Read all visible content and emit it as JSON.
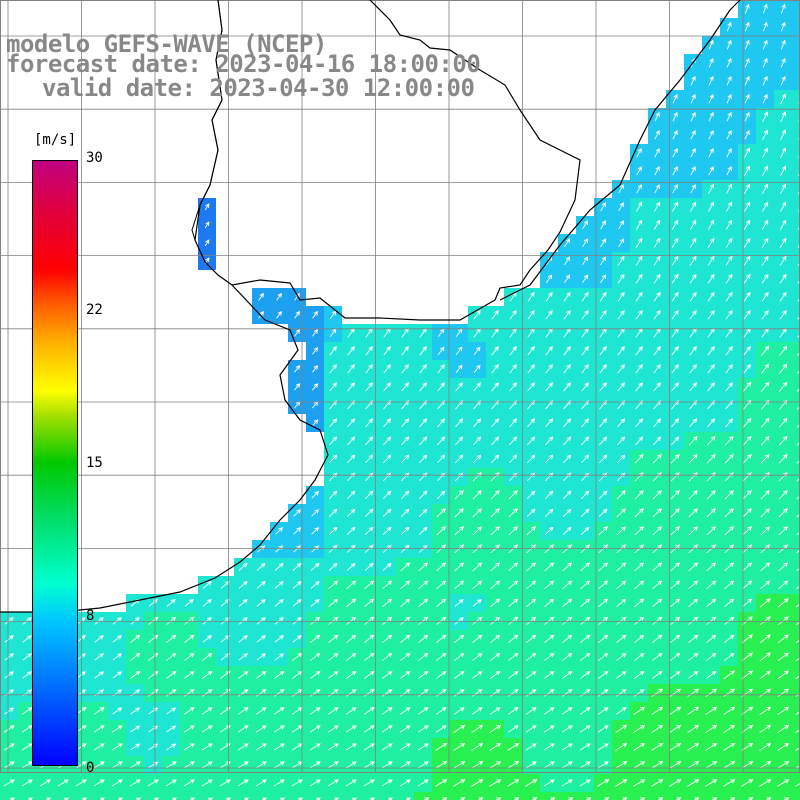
{
  "title": {
    "line1": "modelo GEFS-WAVE (NCEP)",
    "line2": "forecast date: 2023-04-16 18:00:00",
    "line3": "valid date: 2023-04-30 12:00:00"
  },
  "colorbar": {
    "units": "[m/s]",
    "ticks": [
      "30",
      "22",
      "15",
      "8",
      "0"
    ],
    "tick_values": [
      30,
      22,
      15,
      8,
      0
    ]
  },
  "map": {
    "variable": "wind speed and direction",
    "ocean_colors": [
      "#1e78f0",
      "#1ea0f0",
      "#1ec8f0",
      "#1ee6d2",
      "#1ef0a0",
      "#28f050"
    ],
    "land_color": "#ffffff",
    "grid_color": "#808080",
    "coast_color": "#000000",
    "arrow_color": "#ffffff"
  }
}
